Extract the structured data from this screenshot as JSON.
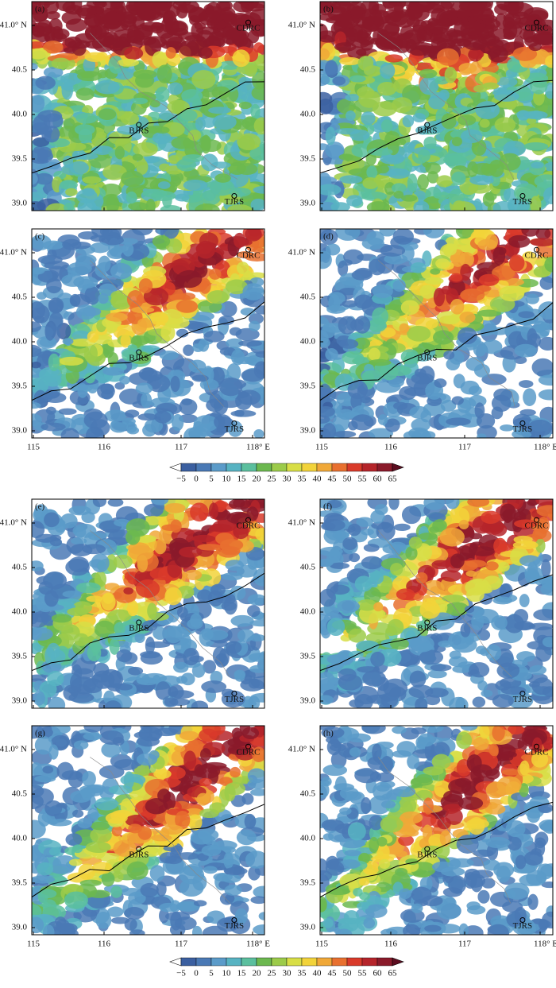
{
  "panels": [
    {
      "label": "(a)"
    },
    {
      "label": "(b)"
    },
    {
      "label": "(c)"
    },
    {
      "label": "(d)"
    },
    {
      "label": "(e)"
    },
    {
      "label": "(f)"
    },
    {
      "label": "(g)"
    },
    {
      "label": "(h)"
    }
  ],
  "lat_labels": [
    "41.0° N",
    "40.5",
    "40.0",
    "39.5",
    "39.0"
  ],
  "lon_labels": [
    "115",
    "116",
    "117",
    "118° E"
  ],
  "stations": [
    "CDRC",
    "BJRS",
    "TJRS"
  ],
  "colorbar": {
    "labels": [
      "−5",
      "0",
      "5",
      "10",
      "15",
      "20",
      "25",
      "30",
      "35",
      "40",
      "45",
      "50",
      "55",
      "60",
      "65"
    ],
    "colors": [
      "#3b5fa0",
      "#4a79b5",
      "#5b9bc9",
      "#57b3c2",
      "#5bbf9e",
      "#6cb84f",
      "#9ccb4a",
      "#d8de46",
      "#f2d33a",
      "#f0a838",
      "#e8702f",
      "#d93a2a",
      "#b5242a",
      "#8a1a2a"
    ],
    "low_color": "#ffffff",
    "high_color": "#5c0d20"
  }
}
